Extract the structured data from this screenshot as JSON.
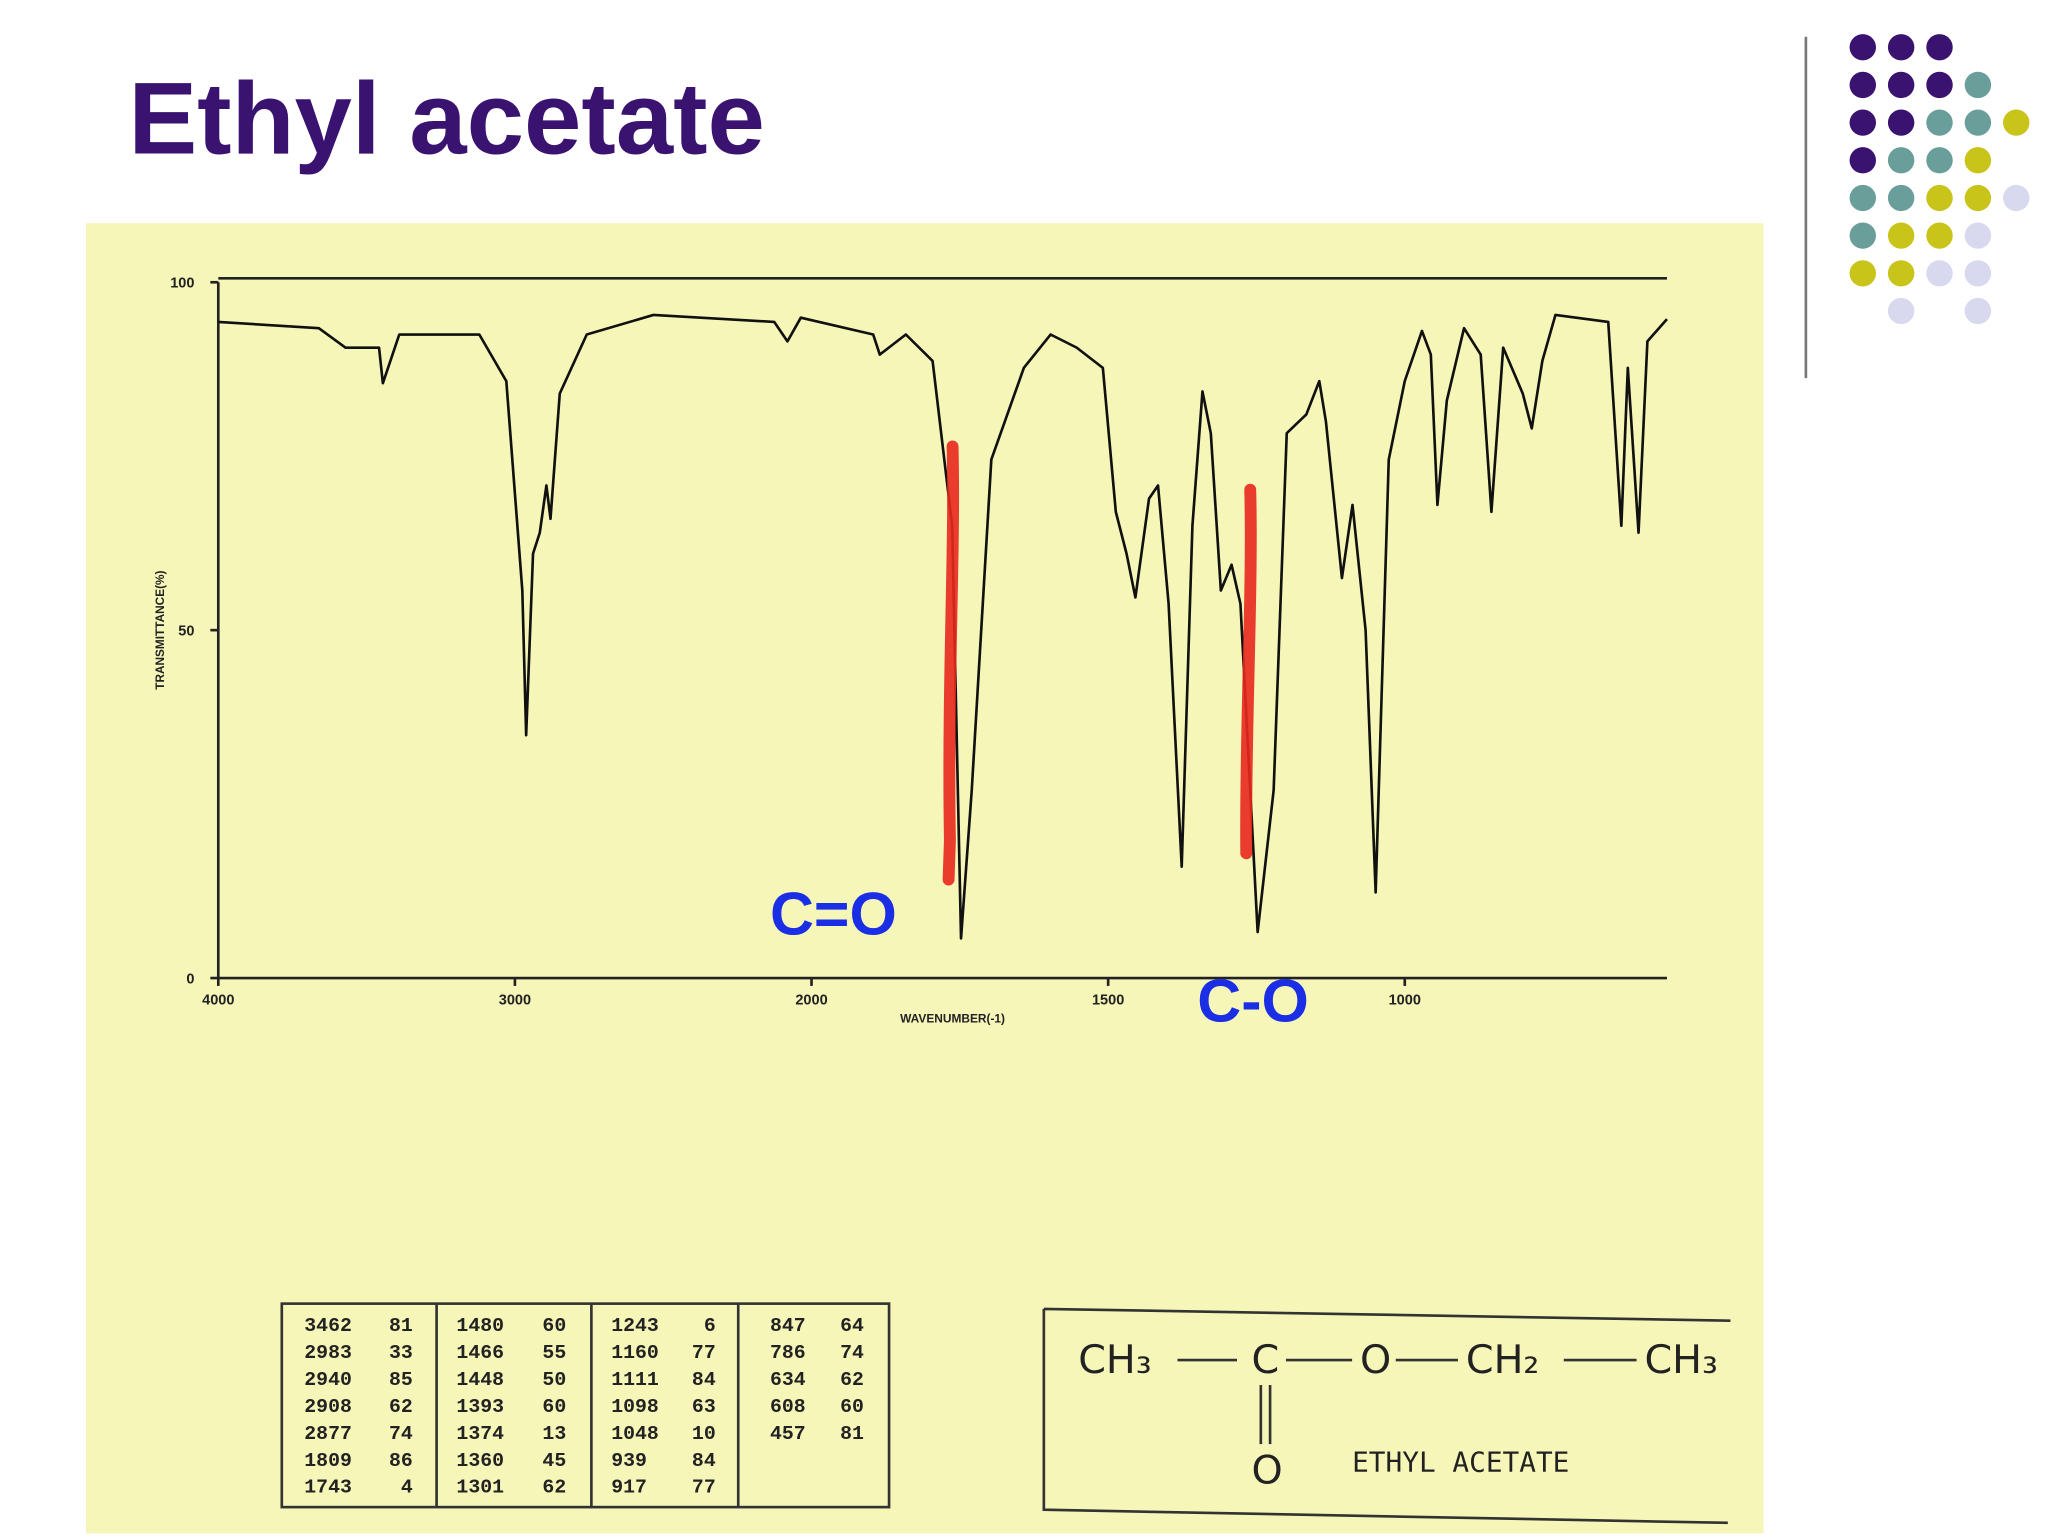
{
  "title": "Ethyl acetate",
  "chart_data": {
    "type": "line",
    "xlabel": "WAVENUMBER(-1)",
    "ylabel": "TRANSMITTANCE(%)",
    "xlim": [
      4000,
      558
    ],
    "xscale_break": 2000,
    "ylim": [
      0,
      100
    ],
    "xticks": [
      4000,
      3000,
      2000,
      1500,
      1000
    ],
    "yticks": [
      0,
      50,
      100
    ],
    "color": "#111111",
    "x": [
      4000,
      3661,
      3571,
      3458,
      3445,
      3390,
      3120,
      3029,
      2975,
      2962,
      2939,
      2916,
      2894,
      2880,
      2849,
      2758,
      2533,
      2126,
      2081,
      2036,
      1896,
      1885,
      1841,
      1796,
      1763,
      1748,
      1730,
      1697,
      1642,
      1597,
      1553,
      1509,
      1487,
      1469,
      1454,
      1431,
      1416,
      1398,
      1376,
      1358,
      1341,
      1327,
      1310,
      1292,
      1277,
      1248,
      1221,
      1199,
      1166,
      1144,
      1133,
      1106,
      1088,
      1066,
      1049,
      1027,
      1000,
      971,
      956,
      945,
      929,
      900,
      872,
      854,
      834,
      801,
      786,
      768,
      746,
      657,
      635,
      624,
      606,
      591,
      558
    ],
    "values": [
      94.3,
      93.4,
      90.6,
      90.6,
      85.5,
      92.5,
      92.5,
      85.8,
      55.7,
      34.9,
      61,
      64,
      70.8,
      66,
      84,
      92.5,
      95.3,
      94.3,
      91.5,
      94.9,
      92.5,
      89.6,
      92.5,
      88.7,
      65,
      5.7,
      27,
      74.5,
      87.7,
      92.5,
      90.6,
      87.7,
      67,
      61,
      54.7,
      68.9,
      70.8,
      53.8,
      16,
      65,
      84.3,
      78.3,
      55.7,
      59.4,
      53.8,
      6.6,
      27,
      78.3,
      81,
      85.8,
      80,
      57.5,
      68,
      50,
      12.3,
      74.5,
      85.8,
      93,
      89.6,
      68,
      83,
      93.4,
      89.6,
      67,
      90.6,
      84,
      79,
      88.7,
      95.3,
      94.3,
      65,
      87.7,
      64,
      91.5,
      94.7
    ],
    "annotations": [
      {
        "text": "C=O"
      },
      {
        "text": "C-O"
      }
    ]
  },
  "peak_table": [
    [
      [
        "3462",
        "81"
      ],
      [
        "2983",
        "33"
      ],
      [
        "2940",
        "85"
      ],
      [
        "2908",
        "62"
      ],
      [
        "2877",
        "74"
      ],
      [
        "1809",
        "86"
      ],
      [
        "1743",
        "4"
      ]
    ],
    [
      [
        "1480",
        "60"
      ],
      [
        "1466",
        "55"
      ],
      [
        "1448",
        "50"
      ],
      [
        "1393",
        "60"
      ],
      [
        "1374",
        "13"
      ],
      [
        "1360",
        "45"
      ],
      [
        "1301",
        "62"
      ]
    ],
    [
      [
        "1243",
        "6"
      ],
      [
        "1160",
        "77"
      ],
      [
        "1111",
        "84"
      ],
      [
        "1098",
        "63"
      ],
      [
        "1048",
        "10"
      ],
      [
        "939",
        "84"
      ],
      [
        "917",
        "77"
      ]
    ],
    [
      [
        "847",
        "64"
      ],
      [
        "786",
        "74"
      ],
      [
        "634",
        "62"
      ],
      [
        "608",
        "60"
      ],
      [
        "457",
        "81"
      ]
    ]
  ],
  "structure": {
    "groups": [
      "CH₃",
      "C",
      "O",
      "CH₂",
      "CH₃"
    ],
    "carbonyl_o": "O",
    "name": "ETHYL ACETATE"
  }
}
